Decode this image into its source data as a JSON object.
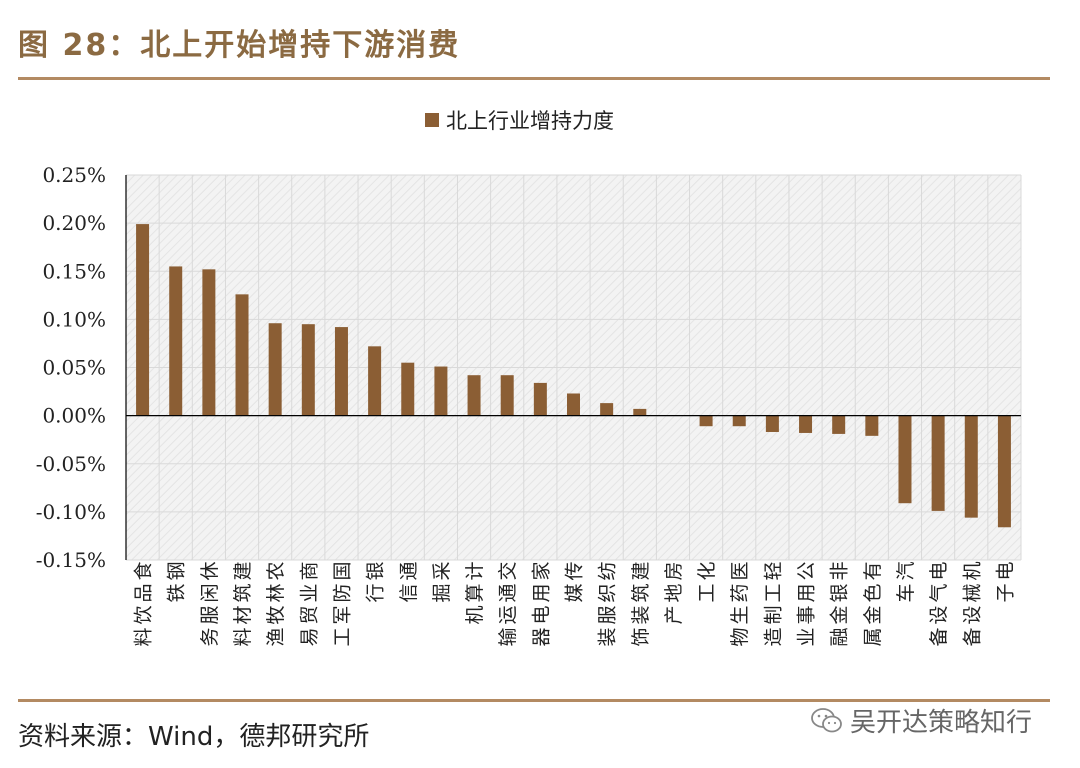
{
  "figure": {
    "title": "图 28：北上开始增持下游消费",
    "source": "资料来源：Wind，德邦研究所",
    "watermark": "吴开达策略知行"
  },
  "colors": {
    "bar": "#8b5e34",
    "rule": "#b38a62",
    "title": "#8b6a42",
    "grid": "#d9d9d9",
    "plot_bg": "#f2f2f2"
  },
  "chart_data": {
    "type": "bar",
    "title": "",
    "xlabel": "",
    "ylabel": "",
    "legend": "北上行业增持力度",
    "legend_position": "top-center",
    "ylim": [
      -0.15,
      0.25
    ],
    "yticks": [
      -0.15,
      -0.1,
      -0.05,
      0.0,
      0.05,
      0.1,
      0.15,
      0.2,
      0.25
    ],
    "ytick_labels": [
      "-0.15%",
      "-0.10%",
      "-0.05%",
      "0.00%",
      "0.05%",
      "0.10%",
      "0.15%",
      "0.20%",
      "0.25%"
    ],
    "grid": true,
    "categories": [
      "食品饮料",
      "钢铁",
      "休闲服务",
      "建筑材料",
      "农林牧渔",
      "商业贸易",
      "国防军工",
      "银行",
      "通信",
      "采掘",
      "计算机",
      "交通运输",
      "家用电器",
      "传媒",
      "纺织服装",
      "建筑装饰",
      "房地产",
      "化工",
      "医药生物",
      "轻工制造",
      "公用事业",
      "非银金融",
      "有色金属",
      "汽车",
      "电气设备",
      "机械设备",
      "电子"
    ],
    "series": [
      {
        "name": "北上行业增持力度",
        "values": [
          0.199,
          0.155,
          0.152,
          0.126,
          0.096,
          0.095,
          0.092,
          0.072,
          0.055,
          0.051,
          0.042,
          0.042,
          0.034,
          0.023,
          0.013,
          0.007,
          0.0,
          -0.011,
          -0.011,
          -0.017,
          -0.018,
          -0.019,
          -0.021,
          -0.091,
          -0.099,
          -0.106,
          -0.116
        ]
      }
    ]
  }
}
